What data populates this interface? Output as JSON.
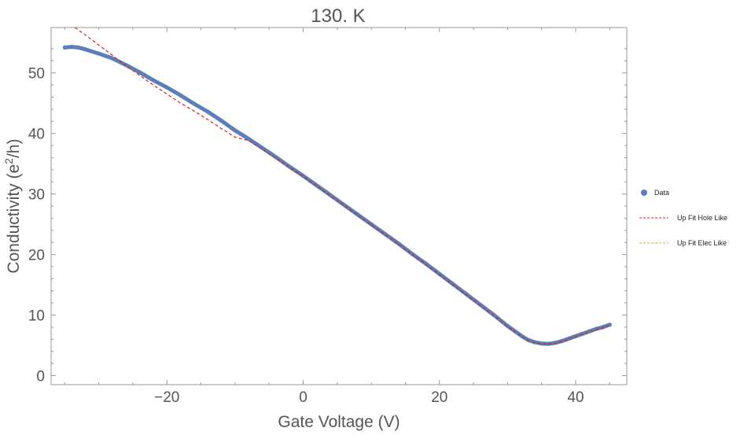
{
  "chart_data": {
    "type": "line",
    "title": "130. K",
    "xlabel": "Gate Voltage (V)",
    "ylabel_main": "Conductivity (e",
    "ylabel_sup": "2",
    "ylabel_tail": "/h)",
    "xlim": [
      -37,
      47.5
    ],
    "ylim": [
      -1.5,
      57.5
    ],
    "x_ticks": [
      -20,
      0,
      20,
      40
    ],
    "x_tick_labels": [
      "−20",
      "0",
      "20",
      "40"
    ],
    "y_ticks": [
      0,
      10,
      20,
      30,
      40,
      50
    ],
    "y_tick_labels": [
      "0",
      "10",
      "20",
      "30",
      "40",
      "50"
    ],
    "grid": false,
    "legend_position": "right",
    "series": [
      {
        "name": "Data",
        "style": "points",
        "color": "#5b7fb8",
        "x": [
          -35,
          -34,
          -33,
          -32,
          -30,
          -28,
          -26,
          -24,
          -22,
          -20,
          -18,
          -16,
          -14,
          -12,
          -10,
          -8,
          -6,
          -4,
          -2,
          0,
          2,
          4,
          6,
          8,
          10,
          12,
          14,
          16,
          18,
          20,
          22,
          24,
          26,
          28,
          30,
          32,
          33,
          34,
          35,
          36,
          37,
          38,
          39,
          40,
          41,
          42,
          43,
          44,
          45
        ],
        "y": [
          54.2,
          54.3,
          54.2,
          53.9,
          53.2,
          52.4,
          51.3,
          50.1,
          48.8,
          47.6,
          46.3,
          44.9,
          43.6,
          42.1,
          40.5,
          39.1,
          37.6,
          36.1,
          34.5,
          33.0,
          31.4,
          29.8,
          28.2,
          26.6,
          25.0,
          23.4,
          21.8,
          20.1,
          18.5,
          16.8,
          15.1,
          13.4,
          11.7,
          10.0,
          8.2,
          6.6,
          5.9,
          5.5,
          5.3,
          5.25,
          5.4,
          5.7,
          6.1,
          6.5,
          6.9,
          7.3,
          7.7,
          8.0,
          8.4
        ]
      },
      {
        "name": "Up Fit Hole Like",
        "style": "dashed",
        "color": "#e02020",
        "x": [
          -33.5,
          -32,
          -30,
          -28,
          -26,
          -24,
          -22,
          -20,
          -18,
          -16,
          -14,
          -12,
          -10,
          -8,
          -6,
          -4,
          -2,
          0,
          2,
          4,
          6,
          8,
          10,
          12,
          14,
          16,
          18,
          20,
          22,
          24,
          26,
          28,
          30,
          32,
          33,
          34,
          35,
          36,
          37,
          38,
          39,
          40,
          41,
          42,
          43,
          44,
          45
        ],
        "y": [
          57.5,
          56.3,
          54.6,
          52.9,
          51.2,
          49.6,
          48.0,
          46.5,
          45.0,
          43.7,
          42.3,
          40.8,
          39.4,
          38.8,
          37.4,
          35.9,
          34.4,
          32.9,
          31.3,
          29.7,
          28.1,
          26.5,
          24.9,
          23.3,
          21.7,
          20.0,
          18.4,
          16.7,
          15.0,
          13.3,
          11.6,
          9.9,
          8.1,
          6.5,
          5.8,
          5.4,
          5.25,
          5.2,
          5.35,
          5.65,
          6.05,
          6.45,
          6.85,
          7.25,
          7.65,
          7.95,
          8.35
        ]
      },
      {
        "name": "Up Fit Elec Like",
        "style": "dashed",
        "color": "#e0a020",
        "x": [],
        "y": []
      }
    ]
  }
}
